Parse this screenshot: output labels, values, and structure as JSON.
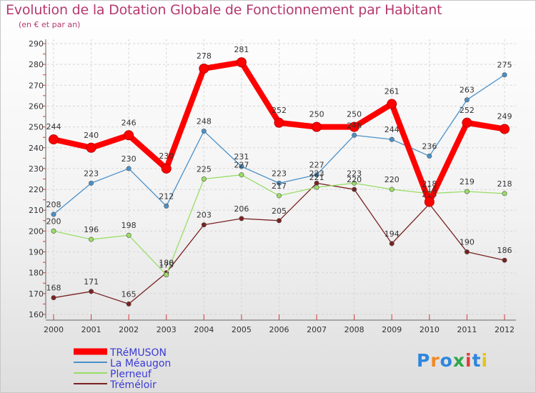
{
  "title": "Evolution de la Dotation Globale de Fonctionnement par Habitant",
  "subtitle": "(en € et par an)",
  "logo": {
    "text": "Proxiti",
    "colors": [
      "#2e86de",
      "#f08a24",
      "#2e86de",
      "#2ea84a",
      "#e03b3b",
      "#2e86de",
      "#e8c21a"
    ]
  },
  "chart_data": {
    "type": "line",
    "title": "Evolution de la Dotation Globale de Fonctionnement par Habitant",
    "ylabel": "(en € et par an)",
    "xlabel": "",
    "ylim": [
      160,
      290
    ],
    "yticks": [
      160,
      170,
      180,
      190,
      200,
      210,
      220,
      230,
      240,
      250,
      260,
      270,
      280,
      290
    ],
    "grid": true,
    "categories": [
      "2000",
      "2001",
      "2002",
      "2003",
      "2004",
      "2005",
      "2006",
      "2007",
      "2008",
      "2009",
      "2010",
      "2011",
      "2012"
    ],
    "series": [
      {
        "name": "TRéMUSON",
        "color": "#ff0000",
        "values": [
          244,
          240,
          246,
          230,
          278,
          281,
          252,
          250,
          250,
          261,
          214,
          252,
          249
        ]
      },
      {
        "name": "La Méaugon",
        "color": "#4a90c8",
        "values": [
          208,
          223,
          230,
          212,
          248,
          231,
          223,
          227,
          246,
          244,
          236,
          263,
          275
        ]
      },
      {
        "name": "Plerneuf",
        "color": "#99dd66",
        "values": [
          200,
          196,
          198,
          179,
          225,
          227,
          217,
          221,
          223,
          220,
          218,
          219,
          218
        ]
      },
      {
        "name": "Tréméloir",
        "color": "#7a2222",
        "values": [
          168,
          171,
          165,
          180,
          203,
          206,
          205,
          223,
          220,
          194,
          213,
          190,
          186
        ]
      }
    ],
    "labels": [
      [
        "244",
        "240",
        "246",
        "230",
        "278",
        "281",
        "252",
        "250",
        "250",
        "261",
        "214",
        "252",
        "249"
      ],
      [
        "208",
        "223",
        "230",
        "212",
        "248",
        "231",
        "223",
        "227",
        "246",
        "244",
        "236",
        "263",
        "275"
      ],
      [
        "200",
        "196",
        "198",
        "179",
        "225",
        "227",
        "217",
        "221",
        "223",
        "220",
        "218",
        "219",
        "218"
      ],
      [
        "168",
        "171",
        "165",
        "180",
        "203",
        "206",
        "205",
        "223",
        "220",
        "194",
        "213",
        "190",
        "186"
      ]
    ],
    "legend_position": "bottom-left"
  }
}
